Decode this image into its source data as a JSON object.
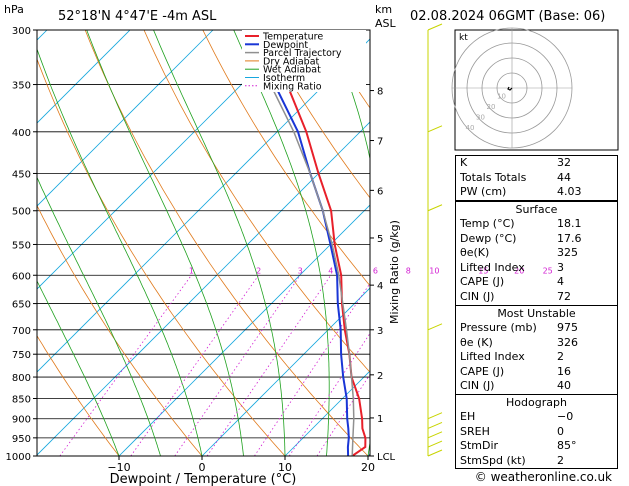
{
  "header": {
    "pressure_unit": "hPa",
    "location": "52°18'N  4°47'E  -4m  ASL",
    "height_unit_top": "km",
    "height_unit_bottom": "ASL",
    "datetime": "02.08.2024  06GMT  (Base: 06)"
  },
  "chart_data": {
    "type": "line",
    "xlabel": "Dewpoint / Temperature (°C)",
    "ylabel": "hPa",
    "right_axis_label": "Mixing Ratio (g/kg)",
    "x_ticks": [
      -30,
      -20,
      -10,
      0,
      10,
      20,
      30,
      40
    ],
    "x_tick_labels": [
      "−30",
      "−20",
      "−10",
      "0",
      "10",
      "20",
      "30",
      "40"
    ],
    "pressure_levels": [
      300,
      350,
      400,
      450,
      500,
      550,
      600,
      650,
      700,
      750,
      800,
      850,
      900,
      950,
      1000
    ],
    "pressure_labels": [
      "300",
      "350",
      "400",
      "450",
      "500",
      "550",
      "600",
      "650",
      "700",
      "750",
      "800",
      "850",
      "900",
      "950",
      "1000"
    ],
    "height_km_ticks": [
      {
        "label": "8",
        "p": 356
      },
      {
        "label": "7",
        "p": 410
      },
      {
        "label": "6",
        "p": 472
      },
      {
        "label": "5",
        "p": 540
      },
      {
        "label": "4",
        "p": 617
      },
      {
        "label": "3",
        "p": 700
      },
      {
        "label": "2",
        "p": 795
      },
      {
        "label": "1",
        "p": 898
      },
      {
        "label": "LCL",
        "p": 1000
      }
    ],
    "mixing_ratio_labels": [
      "1",
      "2",
      "3",
      "4",
      "6",
      "8",
      "10",
      "15",
      "20",
      "25"
    ],
    "mixing_ratio_values": [
      1,
      2,
      3,
      4,
      6,
      8,
      10,
      15,
      20,
      25
    ],
    "legend": [
      "Temperature",
      "Dewpoint",
      "Parcel Trajectory",
      "Dry Adiabat",
      "Wet Adiabat",
      "Isotherm",
      "Mixing Ratio"
    ],
    "legend_position": "top-right",
    "series": [
      {
        "name": "Temperature",
        "color": "#e8202a",
        "points": [
          [
            1000,
            18.1
          ],
          [
            975,
            18.6
          ],
          [
            950,
            17.5
          ],
          [
            925,
            16.0
          ],
          [
            900,
            14.8
          ],
          [
            850,
            12.0
          ],
          [
            800,
            8.5
          ],
          [
            750,
            5.5
          ],
          [
            700,
            2.0
          ],
          [
            650,
            -1.5
          ],
          [
            600,
            -5.0
          ],
          [
            550,
            -9.5
          ],
          [
            500,
            -14.0
          ],
          [
            450,
            -20.0
          ],
          [
            400,
            -26.5
          ],
          [
            350,
            -34.5
          ],
          [
            300,
            -43.0
          ]
        ]
      },
      {
        "name": "Dewpoint",
        "color": "#1a36d6",
        "points": [
          [
            1000,
            17.6
          ],
          [
            975,
            16.5
          ],
          [
            950,
            15.5
          ],
          [
            925,
            14.3
          ],
          [
            900,
            13.0
          ],
          [
            850,
            10.5
          ],
          [
            800,
            7.5
          ],
          [
            750,
            4.5
          ],
          [
            700,
            1.5
          ],
          [
            650,
            -2.0
          ],
          [
            600,
            -5.5
          ],
          [
            550,
            -10.0
          ],
          [
            500,
            -15.0
          ],
          [
            450,
            -21.0
          ],
          [
            400,
            -27.5
          ],
          [
            350,
            -36.0
          ],
          [
            300,
            -44.5
          ]
        ]
      },
      {
        "name": "Parcel Trajectory",
        "color": "#909090",
        "points": [
          [
            1000,
            18.1
          ],
          [
            950,
            16.0
          ],
          [
            900,
            13.8
          ],
          [
            850,
            11.3
          ],
          [
            800,
            8.5
          ],
          [
            750,
            5.5
          ],
          [
            700,
            2.2
          ],
          [
            650,
            -1.4
          ],
          [
            600,
            -5.3
          ],
          [
            550,
            -9.8
          ],
          [
            500,
            -15.0
          ],
          [
            450,
            -21.0
          ],
          [
            400,
            -28.0
          ],
          [
            350,
            -36.5
          ],
          [
            300,
            -46.0
          ]
        ]
      }
    ]
  },
  "colors": {
    "temperature": "#e8202a",
    "dewpoint": "#1a36d6",
    "parcel": "#909090",
    "dry_adiabat": "#e07a1c",
    "wet_adiabat": "#1fa11f",
    "isotherm": "#17a7de",
    "mixing_ratio": "#d21fd2",
    "wind": "#c8d400"
  },
  "hodograph": {
    "unit": "kt",
    "ring_labels": [
      "10",
      "20",
      "30",
      "40"
    ]
  },
  "indices": [
    {
      "label": "K",
      "value": "32"
    },
    {
      "label": "Totals Totals",
      "value": "44"
    },
    {
      "label": "PW (cm)",
      "value": "4.03"
    }
  ],
  "surface": {
    "title": "Surface",
    "rows": [
      {
        "label": "Temp (°C)",
        "value": "18.1"
      },
      {
        "label": "Dewp (°C)",
        "value": "17.6"
      },
      {
        "label": "θe(K)",
        "value": "325"
      },
      {
        "label": "Lifted Index",
        "value": "3"
      },
      {
        "label": "CAPE (J)",
        "value": "4"
      },
      {
        "label": "CIN (J)",
        "value": "72"
      }
    ]
  },
  "most_unstable": {
    "title": "Most Unstable",
    "rows": [
      {
        "label": "Pressure (mb)",
        "value": "975"
      },
      {
        "label": "θe (K)",
        "value": "326"
      },
      {
        "label": "Lifted Index",
        "value": "2"
      },
      {
        "label": "CAPE (J)",
        "value": "16"
      },
      {
        "label": "CIN (J)",
        "value": "40"
      }
    ]
  },
  "hodograph_table": {
    "title": "Hodograph",
    "rows": [
      {
        "label": "EH",
        "value": "−0"
      },
      {
        "label": "SREH",
        "value": "0"
      },
      {
        "label": "StmDir",
        "value": "85°"
      },
      {
        "label": "StmSpd (kt)",
        "value": "2"
      }
    ]
  },
  "footer": {
    "copyright": "© weatheronline.co.uk"
  }
}
